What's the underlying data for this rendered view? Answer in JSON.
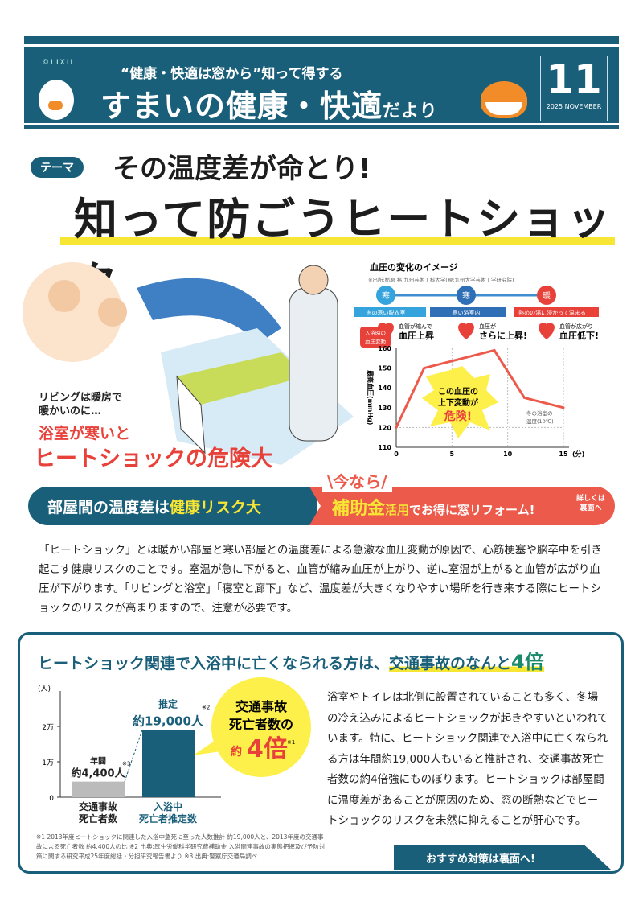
{
  "header": {
    "copyright": "©LIXIL",
    "subtitle": "“健康・快適は窓から”知って得する",
    "title": "すまいの健康・快適",
    "title_suffix": "だより",
    "issue": "11",
    "date": "2025 NOVEMBER",
    "color": "#1a5f7a"
  },
  "headline": {
    "theme_badge": "テーマ",
    "line1": "その温度差が命とり!",
    "line2": "知って防ごうヒートショック"
  },
  "illustration": {
    "caption_small": [
      "リビングは暖房で",
      "暖かいのに…"
    ],
    "caption_red1": "浴室が寒いと",
    "caption_red2": "ヒートショックの危険大"
  },
  "bp_chart_info": {
    "title": "血圧の変化のイメージ",
    "source": "※出所:栃原 裕 九州芸術工科大学(現:九州大学芸術工学研究院)",
    "stages": [
      {
        "icon": "寒",
        "label": "冬の寒い脱衣室",
        "note_small": "血管が縮んで",
        "note_big": "血圧上昇"
      },
      {
        "icon": "寒",
        "label": "寒い浴室内",
        "note_small": "血圧が",
        "note_big": "さらに上昇!"
      },
      {
        "icon": "暖",
        "label": "熱めの湯に浸かって温まる",
        "note_small": "血管が広がり",
        "note_big": "血圧低下!"
      }
    ],
    "side_label": [
      "入浴時の",
      "血圧変動"
    ],
    "burst": [
      "この血圧の",
      "上下変動が",
      "危険!"
    ],
    "annotation": [
      "冬の浴室の",
      "温度(10℃)"
    ]
  },
  "chart_data": [
    {
      "type": "line",
      "title": "血圧の変化のイメージ",
      "ylabel": "最高血圧(mmHg)",
      "xlabel": "(分)",
      "xlim": [
        0,
        15
      ],
      "ylim": [
        110,
        160
      ],
      "xticks": [
        0,
        5,
        10,
        15
      ],
      "yticks": [
        110,
        120,
        130,
        140,
        150,
        160
      ],
      "x": [
        0,
        2.5,
        8.8,
        11.5,
        15
      ],
      "y": [
        120,
        150,
        159,
        135,
        130
      ],
      "color": "#ec5a4c"
    },
    {
      "type": "bar",
      "ylabel": "(人)",
      "ylim": [
        0,
        20000
      ],
      "yticks": [
        "0",
        "1万",
        "2万"
      ],
      "categories": [
        "交通事故死亡者数",
        "入浴中死亡者推定数"
      ],
      "values": [
        4400,
        19000
      ],
      "colors": [
        "#bbbbbb",
        "#1a5f7a"
      ],
      "labels": [
        {
          "top": "年間",
          "value": "約4,400人",
          "note": "※3"
        },
        {
          "top": "推定",
          "value": "約19,000人",
          "note": "※2"
        }
      ]
    }
  ],
  "banner": {
    "left": "部屋間の温度差は",
    "left_hl": "健康リスク大",
    "now": "\\今なら/",
    "sub1": "補助金",
    "sub2": "活用",
    "rest": "でお得に窓リフォーム!",
    "more": [
      "詳しくは",
      "裏面へ"
    ]
  },
  "paragraph": "「ヒートショック」とは暖かい部屋と寒い部屋との温度差による急激な血圧変動が原因で、心筋梗塞や脳卒中を引き起こす健康リスクのことです。室温が急に下がると、血管が縮み血圧が上がり、逆に室温が上がると血管が広がり血圧が下がります。「リビングと浴室」「寝室と廊下」など、温度差が大きくなりやすい場所を行き来する際にヒートショックのリスクが高まりますので、注意が必要です。",
  "box": {
    "title_pre": "ヒートショック関連で入浴中に亡くなられる方は、",
    "title_hl": "交通事故のなんと",
    "title_num": "4倍",
    "bubble": [
      "交通事故",
      "死亡者数の",
      "約",
      "4倍",
      "※1"
    ],
    "body": "浴室やトイレは北側に設置されていることも多く、冬場の冷え込みによるヒートショックが起きやすいといわれています。特に、ヒートショック関連で入浴中に亡くなられる方は年間約19,000人もいると推計され、交通事故死亡者数の約4倍強にものぼります。ヒートショックは部屋間に温度差があることが原因のため、窓の断熱などでヒートショックのリスクを未然に抑えることが肝心です。",
    "footnote": "※1 2013年度ヒートショックに関連した入浴中急死に至った人数推計 約19,000人と、2013年度の交通事故による死亡者数 約4,400人の比 ※2 出典:厚生労働科学研究費補助金 入浴関連事故の実態把握及び予防対策に関する研究平成25年度総括・分担研究報告書より ※3 出典:警察庁交通局調べ",
    "cta": "おすすめ対策は裏面へ!"
  }
}
